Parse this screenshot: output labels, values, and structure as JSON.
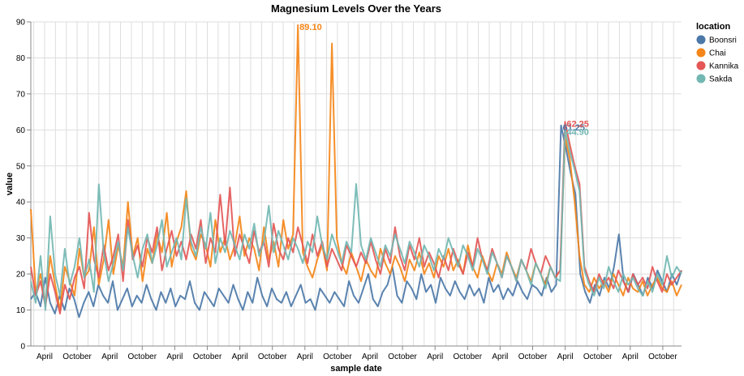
{
  "chart_data": {
    "type": "line",
    "title": "Magnesium Levels Over the Years",
    "xlabel": "sample date",
    "ylabel": "value",
    "ylim": [
      0,
      90
    ],
    "yticks": [
      0,
      10,
      20,
      30,
      40,
      50,
      60,
      70,
      80,
      90
    ],
    "x_tick_labels": [
      "April",
      "October",
      "April",
      "October",
      "April",
      "October",
      "April",
      "October",
      "April",
      "October",
      "April",
      "October",
      "April",
      "October",
      "April",
      "October",
      "April",
      "October",
      "April",
      "October"
    ],
    "grid": true,
    "legend": {
      "title": "location",
      "placement": "top-right"
    },
    "series": [
      {
        "name": "Boonsri",
        "color": "#4c78a8",
        "values": [
          13,
          15,
          11,
          19,
          12,
          9,
          14,
          10,
          16,
          13,
          8,
          12,
          15,
          11,
          17,
          14,
          12,
          18,
          10,
          13,
          16,
          11,
          14,
          12,
          17,
          13,
          10,
          15,
          12,
          16,
          11,
          14,
          13,
          18,
          12,
          10,
          15,
          13,
          11,
          16,
          14,
          12,
          17,
          13,
          10,
          15,
          12,
          19,
          14,
          11,
          16,
          13,
          12,
          15,
          11,
          14,
          17,
          12,
          13,
          10,
          16,
          14,
          12,
          15,
          13,
          11,
          18,
          14,
          12,
          16,
          20,
          13,
          11,
          15,
          17,
          22,
          14,
          12,
          18,
          16,
          13,
          20,
          15,
          17,
          12,
          19,
          16,
          14,
          18,
          15,
          13,
          17,
          14,
          16,
          12,
          19,
          15,
          17,
          13,
          16,
          14,
          18,
          15,
          13,
          17,
          16,
          14,
          19,
          15,
          17,
          61.25,
          55,
          48,
          42,
          20,
          15,
          12,
          17,
          14,
          19,
          16,
          22,
          31,
          18,
          15,
          20,
          17,
          14,
          19,
          16,
          21,
          18,
          15,
          20,
          17,
          21
        ],
        "annotation": "61.25"
      },
      {
        "name": "Chai",
        "color": "#f58518",
        "values": [
          38,
          15,
          20,
          12,
          25,
          17,
          10,
          22,
          18,
          14,
          27,
          19,
          21,
          33,
          17,
          24,
          35,
          20,
          28,
          22,
          40,
          25,
          30,
          18,
          27,
          23,
          31,
          26,
          37,
          22,
          29,
          33,
          43,
          27,
          24,
          31,
          28,
          22,
          35,
          26,
          30,
          24,
          28,
          36,
          25,
          30,
          27,
          21,
          33,
          24,
          29,
          22,
          35,
          27,
          31,
          89.1,
          26,
          22,
          19,
          24,
          28,
          21,
          84,
          30,
          23,
          20,
          26,
          22,
          18,
          24,
          21,
          19,
          27,
          23,
          20,
          25,
          22,
          18,
          24,
          21,
          26,
          20,
          23,
          19,
          25,
          22,
          27,
          21,
          24,
          20,
          28,
          22,
          19,
          25,
          21,
          18,
          23,
          20,
          26,
          22,
          19,
          24,
          21,
          18,
          23,
          20,
          17,
          22,
          19,
          21,
          58,
          52,
          40,
          25,
          17,
          15,
          19,
          16,
          18,
          15,
          20,
          17,
          14,
          19,
          16,
          15,
          18,
          14,
          17,
          19,
          16,
          15,
          18,
          14,
          17
        ],
        "annotation": "89.10"
      },
      {
        "name": "Kannika",
        "color": "#e45756",
        "values": [
          22,
          14,
          18,
          11,
          20,
          15,
          9,
          17,
          13,
          19,
          22,
          16,
          37,
          24,
          19,
          28,
          21,
          25,
          31,
          18,
          35,
          24,
          28,
          22,
          30,
          26,
          33,
          21,
          27,
          32,
          25,
          29,
          24,
          31,
          27,
          35,
          23,
          30,
          26,
          42,
          28,
          44,
          25,
          31,
          27,
          23,
          32,
          26,
          29,
          22,
          34,
          27,
          24,
          30,
          26,
          33,
          28,
          23,
          31,
          25,
          29,
          22,
          27,
          24,
          21,
          28,
          25,
          22,
          26,
          23,
          29,
          24,
          20,
          27,
          23,
          33,
          25,
          21,
          28,
          24,
          30,
          22,
          26,
          23,
          19,
          25,
          21,
          27,
          23,
          20,
          26,
          22,
          30,
          24,
          21,
          27,
          23,
          19,
          25,
          22,
          18,
          24,
          21,
          27,
          23,
          20,
          25,
          22,
          19,
          21,
          62.25,
          56,
          50,
          45,
          22,
          18,
          15,
          20,
          17,
          19,
          16,
          21,
          18,
          15,
          20,
          17,
          19,
          16,
          22,
          18,
          15,
          20,
          17,
          19,
          21
        ],
        "annotation": "62.25"
      },
      {
        "name": "Sakda",
        "color": "#72b7b2",
        "values": [
          18,
          12,
          25,
          10,
          36,
          20,
          14,
          27,
          17,
          22,
          30,
          19,
          24,
          15,
          44.9,
          26,
          18,
          23,
          29,
          21,
          33,
          25,
          19,
          27,
          31,
          23,
          28,
          35,
          22,
          26,
          30,
          24,
          41,
          29,
          25,
          33,
          27,
          37,
          23,
          30,
          26,
          32,
          28,
          24,
          31,
          27,
          34,
          25,
          29,
          39,
          26,
          32,
          28,
          24,
          30,
          27,
          23,
          29,
          26,
          36,
          28,
          24,
          31,
          27,
          23,
          29,
          26,
          45,
          28,
          24,
          30,
          26,
          22,
          28,
          25,
          31,
          27,
          23,
          29,
          26,
          22,
          28,
          25,
          21,
          27,
          24,
          30,
          26,
          22,
          28,
          25,
          21,
          27,
          24,
          20,
          26,
          23,
          19,
          25,
          22,
          18,
          24,
          21,
          17,
          23,
          20,
          16,
          22,
          19,
          18,
          60,
          54,
          49,
          43,
          21,
          17,
          14,
          19,
          16,
          22,
          18,
          15,
          20,
          17,
          19,
          16,
          14,
          18,
          15,
          20,
          17,
          25,
          19,
          22,
          20
        ],
        "annotation": "44.90"
      }
    ]
  }
}
